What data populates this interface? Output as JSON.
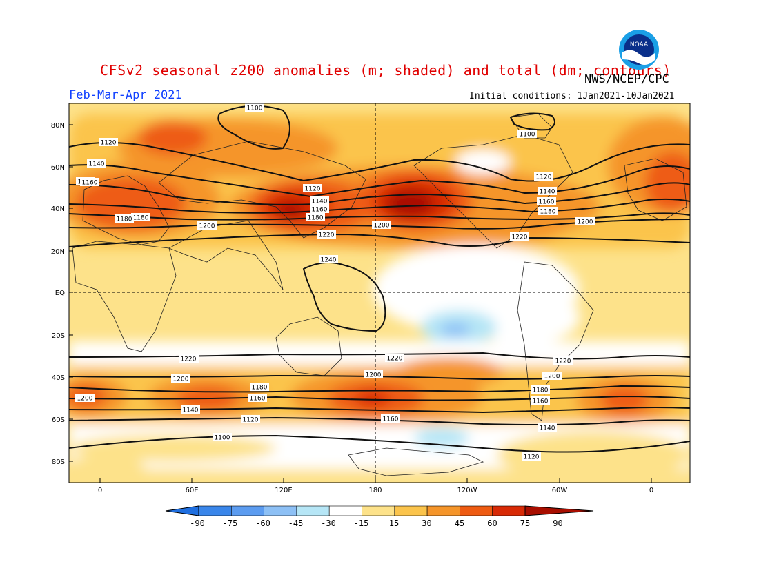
{
  "header": {
    "title": "CFSv2 seasonal z200 anomalies (m; shaded) and total (dm; contours)",
    "agency": "NWS/NCEP/CPC",
    "season": "Feb-Mar-Apr 2021",
    "initial_conditions": "Initial conditions: 1Jan2021-10Jan2021",
    "logo_text": "NOAA"
  },
  "map": {
    "lat_labels": [
      "80N",
      "60N",
      "40N",
      "20N",
      "EQ",
      "20S",
      "40S",
      "60S",
      "80S"
    ],
    "lon_labels": [
      "0",
      "60E",
      "120E",
      "180",
      "120W",
      "60W",
      "0"
    ],
    "contour_labels": [
      "1100",
      "1120",
      "1140",
      "1160",
      "1180",
      "1200",
      "1220",
      "1240",
      "1120",
      "1140",
      "1160",
      "1180",
      "1200",
      "1220",
      "1100",
      "1120",
      "1140",
      "1160",
      "1180",
      "1200",
      "1220",
      "1220",
      "1200",
      "1180",
      "1160",
      "1140",
      "1120",
      "1100",
      "1220",
      "1200",
      "1180",
      "1160",
      "1140",
      "1120",
      "1100",
      "1200",
      "1160",
      "1180",
      "1160",
      "1220",
      "1200",
      "1180"
    ]
  },
  "colorbar": {
    "labels": [
      "-90",
      "-75",
      "-60",
      "-45",
      "-30",
      "-15",
      "15",
      "30",
      "45",
      "60",
      "75",
      "90"
    ],
    "colors": [
      "#1f6fe0",
      "#3a86ea",
      "#5c9cf0",
      "#8dc0f5",
      "#b6e6f6",
      "#ffffff",
      "#fde28a",
      "#fbc44c",
      "#f5952a",
      "#ee5b12",
      "#d82a06",
      "#a80e00"
    ]
  }
}
